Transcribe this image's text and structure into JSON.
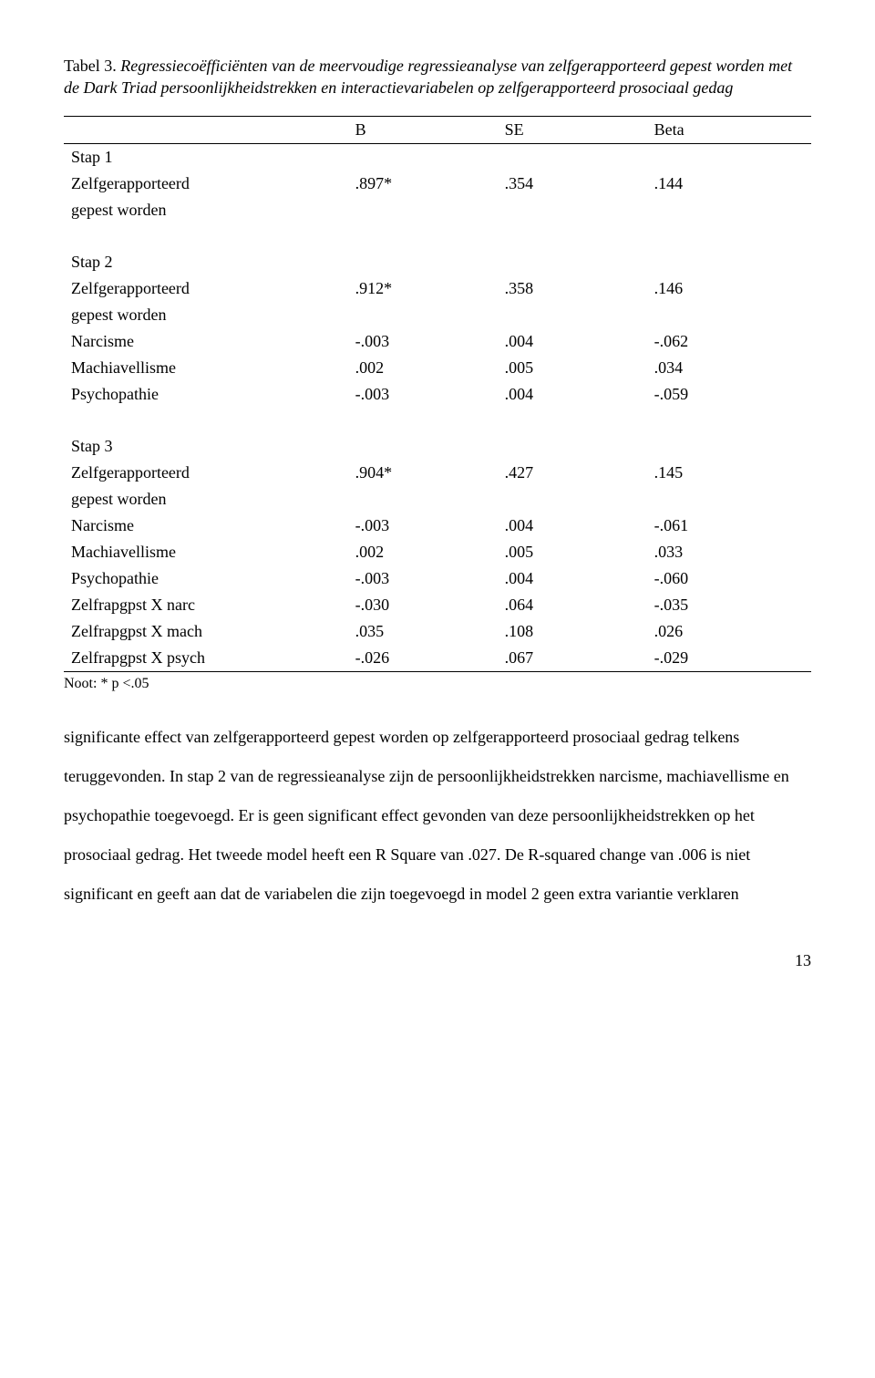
{
  "caption": {
    "label": "Tabel 3. ",
    "text": "Regressiecoëfficiënten van de meervoudige regressieanalyse van zelfgerapporteerd gepest worden met de Dark Triad persoonlijkheidstrekken en interactievariabelen op zelfgerapporteerd prosociaal gedag"
  },
  "headers": {
    "b": "B",
    "se": "SE",
    "beta": "Beta"
  },
  "stap1": {
    "title": "Stap 1",
    "rows": [
      {
        "label": "Zelfgerapporteerd",
        "b": ".897*",
        "se": ".354",
        "beta": ".144"
      },
      {
        "label": "gepest worden",
        "b": "",
        "se": "",
        "beta": ""
      }
    ]
  },
  "stap2": {
    "title": "Stap 2",
    "rows": [
      {
        "label": "Zelfgerapporteerd",
        "b": ".912*",
        "se": ".358",
        "beta": ".146"
      },
      {
        "label": "gepest worden",
        "b": "",
        "se": "",
        "beta": ""
      },
      {
        "label": "Narcisme",
        "b": "-.003",
        "se": ".004",
        "beta": "-.062"
      },
      {
        "label": "Machiavellisme",
        "b": ".002",
        "se": ".005",
        "beta": ".034"
      },
      {
        "label": "Psychopathie",
        "b": "-.003",
        "se": ".004",
        "beta": "-.059"
      }
    ]
  },
  "stap3": {
    "title": "Stap 3",
    "rows": [
      {
        "label": "Zelfgerapporteerd",
        "b": ".904*",
        "se": ".427",
        "beta": ".145"
      },
      {
        "label": "gepest worden",
        "b": "",
        "se": "",
        "beta": ""
      },
      {
        "label": "Narcisme",
        "b": "-.003",
        "se": ".004",
        "beta": "-.061"
      },
      {
        "label": "Machiavellisme",
        "b": ".002",
        "se": ".005",
        "beta": ".033"
      },
      {
        "label": "Psychopathie",
        "b": "-.003",
        "se": ".004",
        "beta": "-.060"
      },
      {
        "label": "Zelfrapgpst X narc",
        "b": "-.030",
        "se": ".064",
        "beta": "-.035"
      },
      {
        "label": "Zelfrapgpst X mach",
        "b": ".035",
        "se": ".108",
        "beta": ".026"
      },
      {
        "label": "Zelfrapgpst X psych",
        "b": "-.026",
        "se": ".067",
        "beta": "-.029"
      }
    ]
  },
  "note": "Noot: * p <.05",
  "body": "significante effect van zelfgerapporteerd gepest worden op zelfgerapporteerd prosociaal gedrag telkens teruggevonden. In stap 2 van de regressieanalyse zijn de persoonlijkheidstrekken narcisme, machiavellisme en psychopathie toegevoegd. Er is geen significant effect gevonden van deze persoonlijkheidstrekken op het prosociaal gedrag. Het tweede model heeft een R Square van .027. De R-squared change van .006 is niet significant en geeft aan dat de variabelen die zijn toegevoegd in model 2 geen extra variantie verklaren",
  "page": "13"
}
